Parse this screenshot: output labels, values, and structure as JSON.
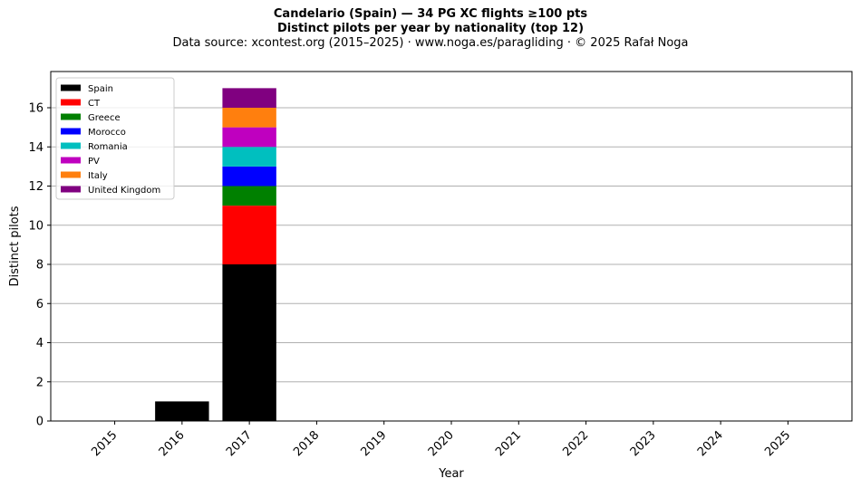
{
  "title": {
    "line1": "Candelario (Spain)  —  34 PG XC flights ≥100 pts",
    "line2": "Distinct pilots per year by nationality (top 12)",
    "line3": "Data source: xcontest.org (2015–2025)  ·  www.noga.es/paragliding  ·  © 2025 Rafał Noga"
  },
  "chart_data": {
    "type": "bar",
    "stacked": true,
    "categories": [
      "2015",
      "2016",
      "2017",
      "2018",
      "2019",
      "2020",
      "2021",
      "2022",
      "2023",
      "2024",
      "2025"
    ],
    "series": [
      {
        "name": "Spain",
        "color": "#000000",
        "values": [
          0,
          1,
          8,
          0,
          0,
          0,
          0,
          0,
          0,
          0,
          0
        ]
      },
      {
        "name": "CT",
        "color": "#ff0000",
        "values": [
          0,
          0,
          3,
          0,
          0,
          0,
          0,
          0,
          0,
          0,
          0
        ]
      },
      {
        "name": "Greece",
        "color": "#008000",
        "values": [
          0,
          0,
          1,
          0,
          0,
          0,
          0,
          0,
          0,
          0,
          0
        ]
      },
      {
        "name": "Morocco",
        "color": "#0000ff",
        "values": [
          0,
          0,
          1,
          0,
          0,
          0,
          0,
          0,
          0,
          0,
          0
        ]
      },
      {
        "name": "Romania",
        "color": "#00bfbf",
        "values": [
          0,
          0,
          1,
          0,
          0,
          0,
          0,
          0,
          0,
          0,
          0
        ]
      },
      {
        "name": "PV",
        "color": "#bf00bf",
        "values": [
          0,
          0,
          1,
          0,
          0,
          0,
          0,
          0,
          0,
          0,
          0
        ]
      },
      {
        "name": "Italy",
        "color": "#ff7f0e",
        "values": [
          0,
          0,
          1,
          0,
          0,
          0,
          0,
          0,
          0,
          0,
          0
        ]
      },
      {
        "name": "United Kingdom",
        "color": "#800080",
        "values": [
          0,
          0,
          1,
          0,
          0,
          0,
          0,
          0,
          0,
          0,
          0
        ]
      }
    ],
    "xlabel": "Year",
    "ylabel": "Distinct pilots",
    "ylim": [
      0,
      17.85
    ],
    "yticks": [
      0,
      2,
      4,
      6,
      8,
      10,
      12,
      14,
      16
    ],
    "grid": "horizontal",
    "legend_position": "top-left"
  }
}
